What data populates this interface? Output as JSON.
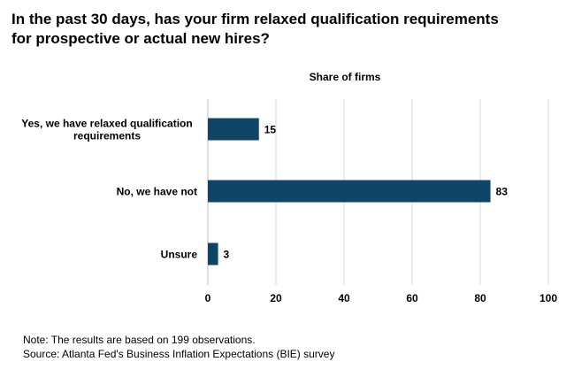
{
  "title_lines": [
    "In the past 30 days, has your firm relaxed qualification requirements",
    "for prospective or actual new hires?"
  ],
  "chart_data": {
    "type": "bar",
    "orientation": "horizontal",
    "title": "In the past 30 days, has your firm relaxed qualification requirements for prospective or actual new hires?",
    "xlabel": "Share of firms",
    "ylabel": "",
    "categories": [
      [
        "Yes, we have relaxed qualification",
        "requirements"
      ],
      [
        "No, we have not"
      ],
      [
        "Unsure"
      ]
    ],
    "values": [
      15,
      83,
      3
    ],
    "xlim": [
      0,
      100
    ],
    "xticks": [
      0,
      20,
      40,
      60,
      80,
      100
    ],
    "grid": true,
    "bar_color": "#0f4566",
    "grid_color": "#d9d9d9",
    "legend": "none"
  },
  "notes": {
    "note": "Note: The results are based on 199 observations.",
    "source": "Source: Atlanta Fed's Business Inflation Expectations (BIE) survey"
  }
}
